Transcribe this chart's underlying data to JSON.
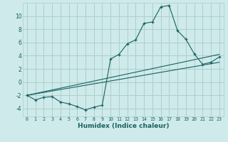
{
  "xlabel": "Humidex (Indice chaleur)",
  "bg_color": "#ceeaea",
  "grid_color": "#aecece",
  "line_color": "#1a6060",
  "xlim": [
    -0.5,
    23.5
  ],
  "ylim": [
    -5.2,
    12.0
  ],
  "xticks": [
    0,
    1,
    2,
    3,
    4,
    5,
    6,
    7,
    8,
    9,
    10,
    11,
    12,
    13,
    14,
    15,
    16,
    17,
    18,
    19,
    20,
    21,
    22,
    23
  ],
  "yticks": [
    -4,
    -2,
    0,
    2,
    4,
    6,
    8,
    10
  ],
  "curve_x": [
    0,
    1,
    2,
    3,
    4,
    5,
    6,
    7,
    8,
    9,
    10,
    11,
    12,
    13,
    14,
    15,
    16,
    17,
    18,
    19,
    20,
    21,
    22,
    23
  ],
  "curve_y": [
    -2.0,
    -2.7,
    -2.3,
    -2.2,
    -3.0,
    -3.3,
    -3.7,
    -4.2,
    -3.8,
    -3.5,
    3.5,
    4.2,
    5.8,
    6.4,
    8.9,
    9.1,
    11.4,
    11.6,
    7.8,
    6.5,
    4.3,
    2.7,
    3.0,
    3.8
  ],
  "line1_x": [
    0,
    23
  ],
  "line1_y": [
    -2.0,
    4.2
  ],
  "line2_x": [
    0,
    23
  ],
  "line2_y": [
    -2.0,
    3.0
  ]
}
